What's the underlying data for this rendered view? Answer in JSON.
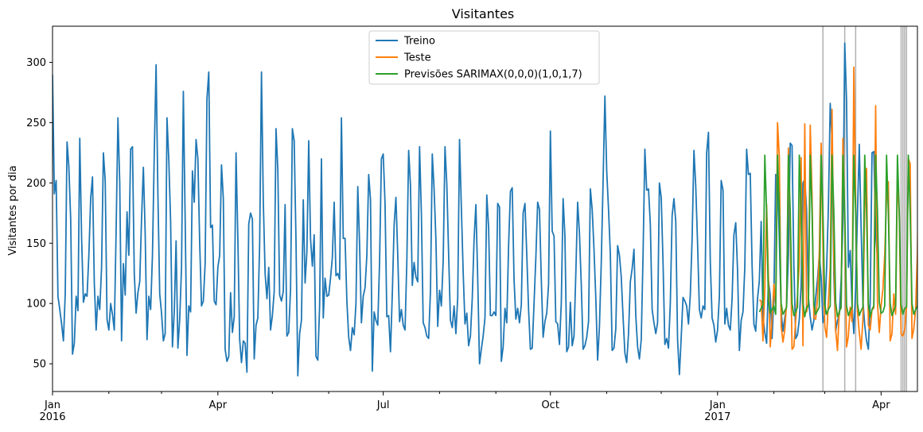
{
  "chart_data": {
    "type": "line",
    "title": "Visitantes",
    "ylabel": "Visitantes por dia",
    "xlabel": "",
    "ylim": [
      27,
      330
    ],
    "yticks": [
      50,
      100,
      150,
      200,
      250,
      300
    ],
    "x_start": "2016-01-01",
    "x_end": "2017-04-21",
    "grid": false,
    "legend_position": "top-center",
    "major_ticks": [
      {
        "date": "2016-01-01",
        "label": "Jan",
        "sublabel": "2016"
      },
      {
        "date": "2016-04-01",
        "label": "Apr",
        "sublabel": ""
      },
      {
        "date": "2016-07-01",
        "label": "Jul",
        "sublabel": ""
      },
      {
        "date": "2016-10-01",
        "label": "Oct",
        "sublabel": ""
      },
      {
        "date": "2017-01-01",
        "label": "Jan",
        "sublabel": "2017"
      },
      {
        "date": "2017-04-01",
        "label": "Apr",
        "sublabel": ""
      }
    ],
    "minor_ticks": [
      "2016-02-01",
      "2016-03-01",
      "2016-05-01",
      "2016-06-01",
      "2016-08-01",
      "2016-09-01",
      "2016-11-01",
      "2016-12-01",
      "2017-02-01",
      "2017-03-01"
    ],
    "series": [
      {
        "name": "Treino",
        "color": "#1f77b4",
        "start": "2016-01-01",
        "values": [
          290,
          191,
          202,
          106,
          95,
          83,
          69,
          108,
          234,
          213,
          170,
          58,
          67,
          106,
          94,
          237,
          155,
          101,
          108,
          106,
          140,
          187,
          205,
          117,
          78,
          106,
          95,
          130,
          225,
          202,
          87,
          78,
          100,
          91,
          78,
          160,
          254,
          200,
          69,
          133,
          107,
          176,
          140,
          228,
          230,
          125,
          92,
          109,
          118,
          170,
          213,
          158,
          70,
          106,
          95,
          140,
          225,
          298,
          190,
          108,
          92,
          69,
          75,
          254,
          219,
          168,
          64,
          93,
          152,
          63,
          87,
          130,
          276,
          170,
          57,
          98,
          93,
          210,
          184,
          236,
          220,
          150,
          98,
          102,
          133,
          270,
          292,
          163,
          165,
          102,
          99,
          130,
          140,
          215,
          187,
          62,
          52,
          56,
          109,
          76,
          89,
          225,
          154,
          70,
          51,
          69,
          67,
          43,
          166,
          175,
          170,
          54,
          82,
          88,
          150,
          292,
          185,
          125,
          104,
          130,
          78,
          90,
          110,
          245,
          211,
          107,
          102,
          110,
          182,
          73,
          76,
          112,
          245,
          235,
          152,
          40,
          75,
          86,
          186,
          117,
          143,
          235,
          154,
          131,
          157,
          56,
          53,
          98,
          220,
          88,
          121,
          106,
          107,
          121,
          138,
          184,
          123,
          125,
          120,
          254,
          154,
          154,
          102,
          72,
          61,
          80,
          74,
          100,
          197,
          149,
          84,
          106,
          113,
          140,
          207,
          186,
          44,
          93,
          86,
          82,
          135,
          220,
          224,
          183,
          89,
          90,
          60,
          108,
          165,
          188,
          140,
          85,
          95,
          82,
          78,
          135,
          227,
          198,
          115,
          134,
          122,
          118,
          230,
          175,
          84,
          80,
          73,
          71,
          110,
          224,
          195,
          153,
          81,
          111,
          98,
          135,
          230,
          199,
          141,
          86,
          80,
          98,
          75,
          105,
          236,
          180,
          126,
          83,
          92,
          65,
          73,
          104,
          153,
          182,
          121,
          50,
          62,
          73,
          88,
          190,
          163,
          90,
          90,
          93,
          90,
          183,
          180,
          52,
          64,
          96,
          84,
          148,
          193,
          196,
          120,
          87,
          96,
          84,
          99,
          175,
          183,
          141,
          95,
          62,
          63,
          100,
          138,
          184,
          178,
          120,
          72,
          85,
          92,
          116,
          243,
          160,
          156,
          85,
          83,
          66,
          100,
          187,
          156,
          60,
          64,
          101,
          65,
          73,
          125,
          184,
          158,
          116,
          62,
          65,
          72,
          85,
          195,
          178,
          145,
          104,
          53,
          81,
          134,
          201,
          272,
          210,
          178,
          141,
          61,
          63,
          79,
          148,
          140,
          122,
          89,
          59,
          51,
          75,
          118,
          129,
          145,
          90,
          64,
          54,
          70,
          140,
          228,
          194,
          195,
          166,
          95,
          84,
          75,
          84,
          200,
          188,
          134,
          66,
          71,
          63,
          100,
          173,
          187,
          168,
          70,
          41,
          72,
          105,
          102,
          98,
          83,
          107,
          154,
          227,
          197,
          150,
          95,
          88,
          98,
          95,
          225,
          242,
          135,
          88,
          82,
          68,
          78,
          106,
          202,
          194,
          83,
          96,
          82,
          78,
          104,
          157,
          167,
          128,
          61,
          86,
          93,
          130,
          228,
          207,
          208,
          132,
          83,
          77,
          104,
          119,
          168,
          89,
          76,
          67,
          119,
          107,
          71,
          105,
          207,
          206,
          153,
          93,
          77,
          88,
          98,
          140,
          233,
          231,
          132,
          71,
          74,
          87,
          115,
          200,
          203,
          178,
          105,
          89,
          78,
          86,
          105,
          120,
          140,
          122,
          84,
          91,
          128,
          180,
          266,
          236,
          123,
          77,
          86,
          90,
          119,
          168,
          316,
          268,
          130,
          144,
          99,
          75,
          113,
          175,
          232,
          163,
          102,
          82,
          69,
          62,
          101,
          225,
          226,
          158,
          137
        ]
      },
      {
        "name": "Teste",
        "color": "#ff7f0e",
        "start": "2017-01-24",
        "values": [
          103,
          102,
          69,
          112,
          182,
          122,
          64,
          87,
          116,
          98,
          250,
          221,
          81,
          68,
          78,
          101,
          229,
          160,
          62,
          64,
          86,
          107,
          134,
          221,
          65,
          249,
          93,
          100,
          248,
          190,
          88,
          87,
          104,
          143,
          233,
          149,
          81,
          72,
          101,
          131,
          261,
          138,
          78,
          61,
          94,
          96,
          237,
          169,
          64,
          73,
          97,
          85,
          296,
          184,
          94,
          76,
          62,
          87,
          179,
          212,
          82,
          78,
          95,
          96,
          264,
          101,
          76,
          98,
          112,
          140,
          188,
          201,
          69,
          75,
          108,
          91,
          205,
          174,
          75,
          73,
          78,
          98,
          220,
          216,
          71,
          79,
          95,
          142,
          253,
          216,
          91,
          79,
          83,
          168,
          225
        ]
      },
      {
        "name": "Previsões SARIMAX(0,0,0)(1,0,1,7)",
        "color": "#2ca02c",
        "start": "2017-01-24",
        "values": [
          93,
          96,
          99,
          223,
          176,
          102,
          92,
          95,
          98,
          91,
          223,
          176,
          100,
          91,
          94,
          97,
          223,
          176,
          100,
          90,
          93,
          97,
          223,
          176,
          101,
          89,
          97,
          98,
          223,
          176,
          100,
          91,
          94,
          97,
          223,
          176,
          99,
          91,
          95,
          98,
          223,
          176,
          101,
          89,
          93,
          97,
          223,
          176,
          98,
          90,
          94,
          97,
          223,
          176,
          100,
          90,
          94,
          97,
          223,
          177,
          99,
          89,
          95,
          98,
          223,
          176,
          101,
          92,
          93,
          98,
          223,
          176,
          100,
          90,
          94,
          98,
          223,
          175,
          99,
          91,
          96,
          97,
          223,
          176,
          100,
          91,
          95,
          98,
          223,
          238,
          120,
          94,
          95,
          98,
          223
        ]
      }
    ],
    "event_lines": [
      "2017-02-28",
      "2017-03-12",
      "2017-03-18",
      "2017-04-12",
      "2017-04-13",
      "2017-04-14",
      "2017-04-15"
    ],
    "event_line_color": "#b0b0b0"
  }
}
